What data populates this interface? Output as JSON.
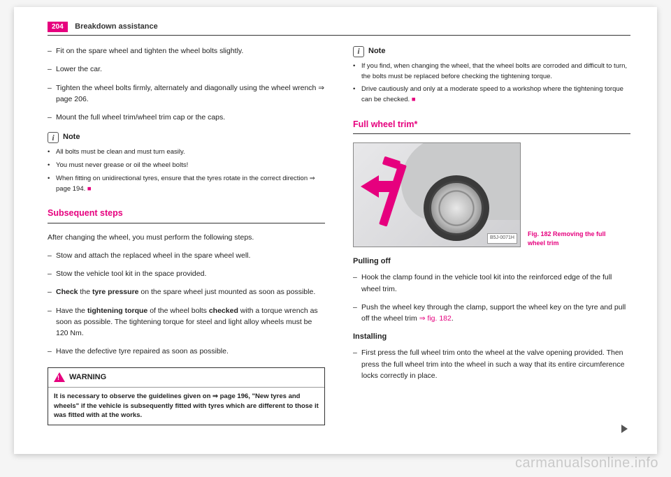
{
  "header": {
    "page_num": "204",
    "title": "Breakdown assistance"
  },
  "colA": {
    "steps1": [
      "Fit on the spare wheel and tighten the wheel bolts slightly.",
      "Lower the car.",
      "Tighten the wheel bolts firmly, alternately and diagonally using the wheel wrench ⇒ page 206.",
      "Mount the full wheel trim/wheel trim cap or the caps."
    ],
    "note_label": "Note",
    "note_items": [
      "All bolts must be clean and must turn easily.",
      "You must never grease or oil the wheel bolts!",
      "When fitting on unidirectional tyres, ensure that the tyres rotate in the correct direction ⇒ page 194."
    ],
    "section_title": "Subsequent steps",
    "intro": "After changing the wheel, you must perform the following steps.",
    "steps2": [
      {
        "pre": "",
        "bold": "",
        "post": "Stow and attach the replaced wheel in the spare wheel well."
      },
      {
        "pre": "",
        "bold": "",
        "post": "Stow the vehicle tool kit in the space provided."
      },
      {
        "pre": "",
        "bold": "Check",
        "mid": " the ",
        "bold2": "tyre pressure",
        "post": " on the spare wheel just mounted as soon as possible."
      },
      {
        "pre": "Have the ",
        "bold": "tightening torque",
        "mid": " of the wheel bolts ",
        "bold2": "checked",
        "post": " with a torque wrench as soon as possible. The tightening torque for steel and light alloy wheels must be 120 Nm."
      },
      {
        "pre": "",
        "bold": "",
        "post": "Have the defective tyre repaired as soon as possible."
      }
    ],
    "warning_label": "WARNING",
    "warning_body": "It is necessary to observe the guidelines given on ⇒ page 196, \"New tyres and wheels\" if the vehicle is subsequently fitted with tyres which are different to those it was fitted with at the works."
  },
  "colB": {
    "note_label": "Note",
    "note_items": [
      "If you find, when changing the wheel, that the wheel bolts are corroded and difficult to turn, the bolts must be replaced before checking the tightening torque.",
      "Drive cautiously and only at a moderate speed to a workshop where the tightening torque can be checked."
    ],
    "section_title": "Full wheel trim*",
    "fig_code": "B5J-0071H",
    "fig_caption_1": "Fig. 182  Removing the full",
    "fig_caption_2": "wheel trim",
    "pulling_head": "Pulling off",
    "pulling_steps": [
      "Hook the clamp found in the vehicle tool kit into the reinforced edge of the full wheel trim.",
      "Push the wheel key through the clamp, support the wheel key on the tyre and pull off the wheel trim "
    ],
    "fig_ref": "⇒ fig. 182",
    "installing_head": "Installing",
    "installing_steps": [
      "First press the full wheel trim onto the wheel at the valve opening provided. Then press the full wheel trim into the wheel in such a way that its entire circumference locks correctly in place."
    ]
  },
  "watermark": "carmanualsonline.info"
}
